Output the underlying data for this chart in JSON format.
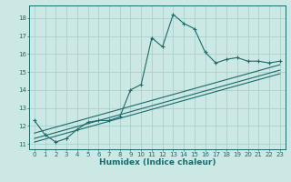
{
  "title": "",
  "xlabel": "Humidex (Indice chaleur)",
  "ylabel": "",
  "bg_color": "#cce8e4",
  "grid_color": "#aacfcc",
  "line_color": "#1a6b6b",
  "xlim": [
    -0.5,
    23.5
  ],
  "ylim": [
    10.7,
    18.7
  ],
  "yticks": [
    11,
    12,
    13,
    14,
    15,
    16,
    17,
    18
  ],
  "xticks": [
    0,
    1,
    2,
    3,
    4,
    5,
    6,
    7,
    8,
    9,
    10,
    11,
    12,
    13,
    14,
    15,
    16,
    17,
    18,
    19,
    20,
    21,
    22,
    23
  ],
  "main_line_x": [
    0,
    1,
    2,
    3,
    4,
    5,
    6,
    7,
    8,
    9,
    10,
    11,
    12,
    13,
    14,
    15,
    16,
    17,
    18,
    19,
    20,
    21,
    22,
    23
  ],
  "main_line_y": [
    12.3,
    11.5,
    11.1,
    11.3,
    11.8,
    12.2,
    12.3,
    12.3,
    12.5,
    14.0,
    14.3,
    16.9,
    16.4,
    18.2,
    17.7,
    17.4,
    16.1,
    15.5,
    15.7,
    15.8,
    15.6,
    15.6,
    15.5,
    15.6
  ],
  "trend1_x": [
    0,
    23
  ],
  "trend1_y": [
    11.6,
    15.4
  ],
  "trend2_x": [
    0,
    23
  ],
  "trend2_y": [
    11.3,
    15.1
  ],
  "trend3_x": [
    0,
    23
  ],
  "trend3_y": [
    11.1,
    14.9
  ]
}
